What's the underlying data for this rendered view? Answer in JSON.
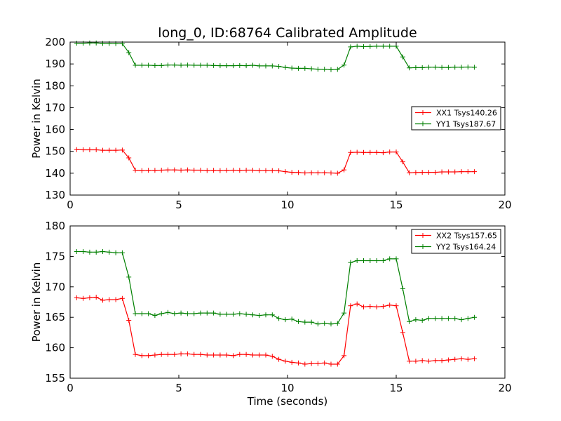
{
  "title": "long_0, ID:68764 Calibrated Amplitude",
  "chart_data": [
    {
      "type": "line",
      "xlabel": "",
      "ylabel": "Power in Kelvin",
      "xlim": [
        0,
        20
      ],
      "ylim": [
        130,
        200
      ],
      "xticks": [
        0,
        5,
        10,
        15,
        20
      ],
      "yticks": [
        130,
        140,
        150,
        160,
        170,
        180,
        190,
        200
      ],
      "legend": "center-right",
      "grid": false,
      "x": [
        0.3,
        0.6,
        0.9,
        1.2,
        1.5,
        1.8,
        2.1,
        2.4,
        2.7,
        3.0,
        3.3,
        3.6,
        3.9,
        4.2,
        4.5,
        4.8,
        5.1,
        5.4,
        5.7,
        6.0,
        6.3,
        6.6,
        6.9,
        7.2,
        7.5,
        7.8,
        8.1,
        8.4,
        8.7,
        9.0,
        9.3,
        9.6,
        9.9,
        10.2,
        10.5,
        10.8,
        11.1,
        11.4,
        11.7,
        12.0,
        12.3,
        12.6,
        12.9,
        13.2,
        13.5,
        13.8,
        14.1,
        14.4,
        14.7,
        15.0,
        15.3,
        15.6,
        15.9,
        16.2,
        16.5,
        16.8,
        17.1,
        17.4,
        17.7,
        18.0,
        18.3,
        18.6
      ],
      "series": [
        {
          "name": "XX1 Tsys140.26",
          "color": "#ff0000",
          "values": [
            150.8,
            150.7,
            150.7,
            150.7,
            150.5,
            150.5,
            150.5,
            150.6,
            147.0,
            141.4,
            141.2,
            141.3,
            141.3,
            141.4,
            141.5,
            141.5,
            141.4,
            141.5,
            141.4,
            141.4,
            141.2,
            141.3,
            141.2,
            141.3,
            141.4,
            141.3,
            141.4,
            141.4,
            141.2,
            141.2,
            141.2,
            141.1,
            140.7,
            140.4,
            140.3,
            140.1,
            140.2,
            140.2,
            140.2,
            140.1,
            140.0,
            141.5,
            149.5,
            149.6,
            149.5,
            149.5,
            149.5,
            149.4,
            149.7,
            149.7,
            145.2,
            140.2,
            140.3,
            140.4,
            140.4,
            140.4,
            140.6,
            140.6,
            140.6,
            140.7,
            140.7,
            140.7
          ]
        },
        {
          "name": "YY1 Tsys187.67",
          "color": "#008000",
          "values": [
            199.5,
            199.5,
            199.6,
            199.6,
            199.4,
            199.4,
            199.3,
            199.3,
            195.2,
            189.4,
            189.4,
            189.4,
            189.3,
            189.3,
            189.5,
            189.5,
            189.4,
            189.5,
            189.4,
            189.4,
            189.4,
            189.3,
            189.2,
            189.2,
            189.2,
            189.3,
            189.2,
            189.4,
            189.1,
            189.1,
            189.1,
            188.9,
            188.4,
            188.1,
            188.0,
            188.0,
            187.8,
            187.6,
            187.6,
            187.4,
            187.5,
            189.5,
            197.8,
            198.1,
            197.9,
            198.0,
            198.1,
            198.1,
            198.1,
            198.1,
            193.2,
            188.2,
            188.3,
            188.3,
            188.5,
            188.5,
            188.4,
            188.4,
            188.5,
            188.5,
            188.6,
            188.5
          ]
        }
      ]
    },
    {
      "type": "line",
      "xlabel": "Time (seconds)",
      "ylabel": "Power in Kelvin",
      "xlim": [
        0,
        20
      ],
      "ylim": [
        155,
        180
      ],
      "xticks": [
        0,
        5,
        10,
        15,
        20
      ],
      "yticks": [
        155,
        160,
        165,
        170,
        175,
        180
      ],
      "legend": "top-right",
      "grid": false,
      "x": [
        0.3,
        0.6,
        0.9,
        1.2,
        1.5,
        1.8,
        2.1,
        2.4,
        2.7,
        3.0,
        3.3,
        3.6,
        3.9,
        4.2,
        4.5,
        4.8,
        5.1,
        5.4,
        5.7,
        6.0,
        6.3,
        6.6,
        6.9,
        7.2,
        7.5,
        7.8,
        8.1,
        8.4,
        8.7,
        9.0,
        9.3,
        9.6,
        9.9,
        10.2,
        10.5,
        10.8,
        11.1,
        11.4,
        11.7,
        12.0,
        12.3,
        12.6,
        12.9,
        13.2,
        13.5,
        13.8,
        14.1,
        14.4,
        14.7,
        15.0,
        15.3,
        15.6,
        15.9,
        16.2,
        16.5,
        16.8,
        17.1,
        17.4,
        17.7,
        18.0,
        18.3,
        18.6
      ],
      "series": [
        {
          "name": "XX2 Tsys157.65",
          "color": "#ff0000",
          "values": [
            168.2,
            168.1,
            168.2,
            168.3,
            167.8,
            167.9,
            167.9,
            168.1,
            164.5,
            158.9,
            158.7,
            158.7,
            158.8,
            158.9,
            158.9,
            158.9,
            159.0,
            159.0,
            158.9,
            158.9,
            158.8,
            158.8,
            158.8,
            158.8,
            158.7,
            158.9,
            158.9,
            158.8,
            158.8,
            158.8,
            158.6,
            158.1,
            157.8,
            157.6,
            157.5,
            157.3,
            157.4,
            157.4,
            157.5,
            157.3,
            157.3,
            158.7,
            166.9,
            167.2,
            166.7,
            166.8,
            166.7,
            166.8,
            167.0,
            166.9,
            162.5,
            157.8,
            157.8,
            157.9,
            157.8,
            157.9,
            157.9,
            158.0,
            158.1,
            158.2,
            158.1,
            158.2
          ]
        },
        {
          "name": "YY2 Tsys164.24",
          "color": "#008000",
          "values": [
            175.8,
            175.8,
            175.7,
            175.7,
            175.8,
            175.7,
            175.6,
            175.6,
            171.6,
            165.6,
            165.6,
            165.6,
            165.3,
            165.6,
            165.8,
            165.6,
            165.7,
            165.6,
            165.6,
            165.7,
            165.7,
            165.7,
            165.5,
            165.5,
            165.5,
            165.6,
            165.5,
            165.4,
            165.3,
            165.4,
            165.4,
            164.8,
            164.6,
            164.7,
            164.3,
            164.2,
            164.2,
            163.9,
            164.0,
            163.9,
            164.0,
            165.7,
            174.0,
            174.3,
            174.3,
            174.3,
            174.3,
            174.3,
            174.6,
            174.6,
            169.7,
            164.3,
            164.6,
            164.5,
            164.8,
            164.8,
            164.8,
            164.8,
            164.8,
            164.6,
            164.8,
            165.0
          ]
        }
      ]
    }
  ]
}
